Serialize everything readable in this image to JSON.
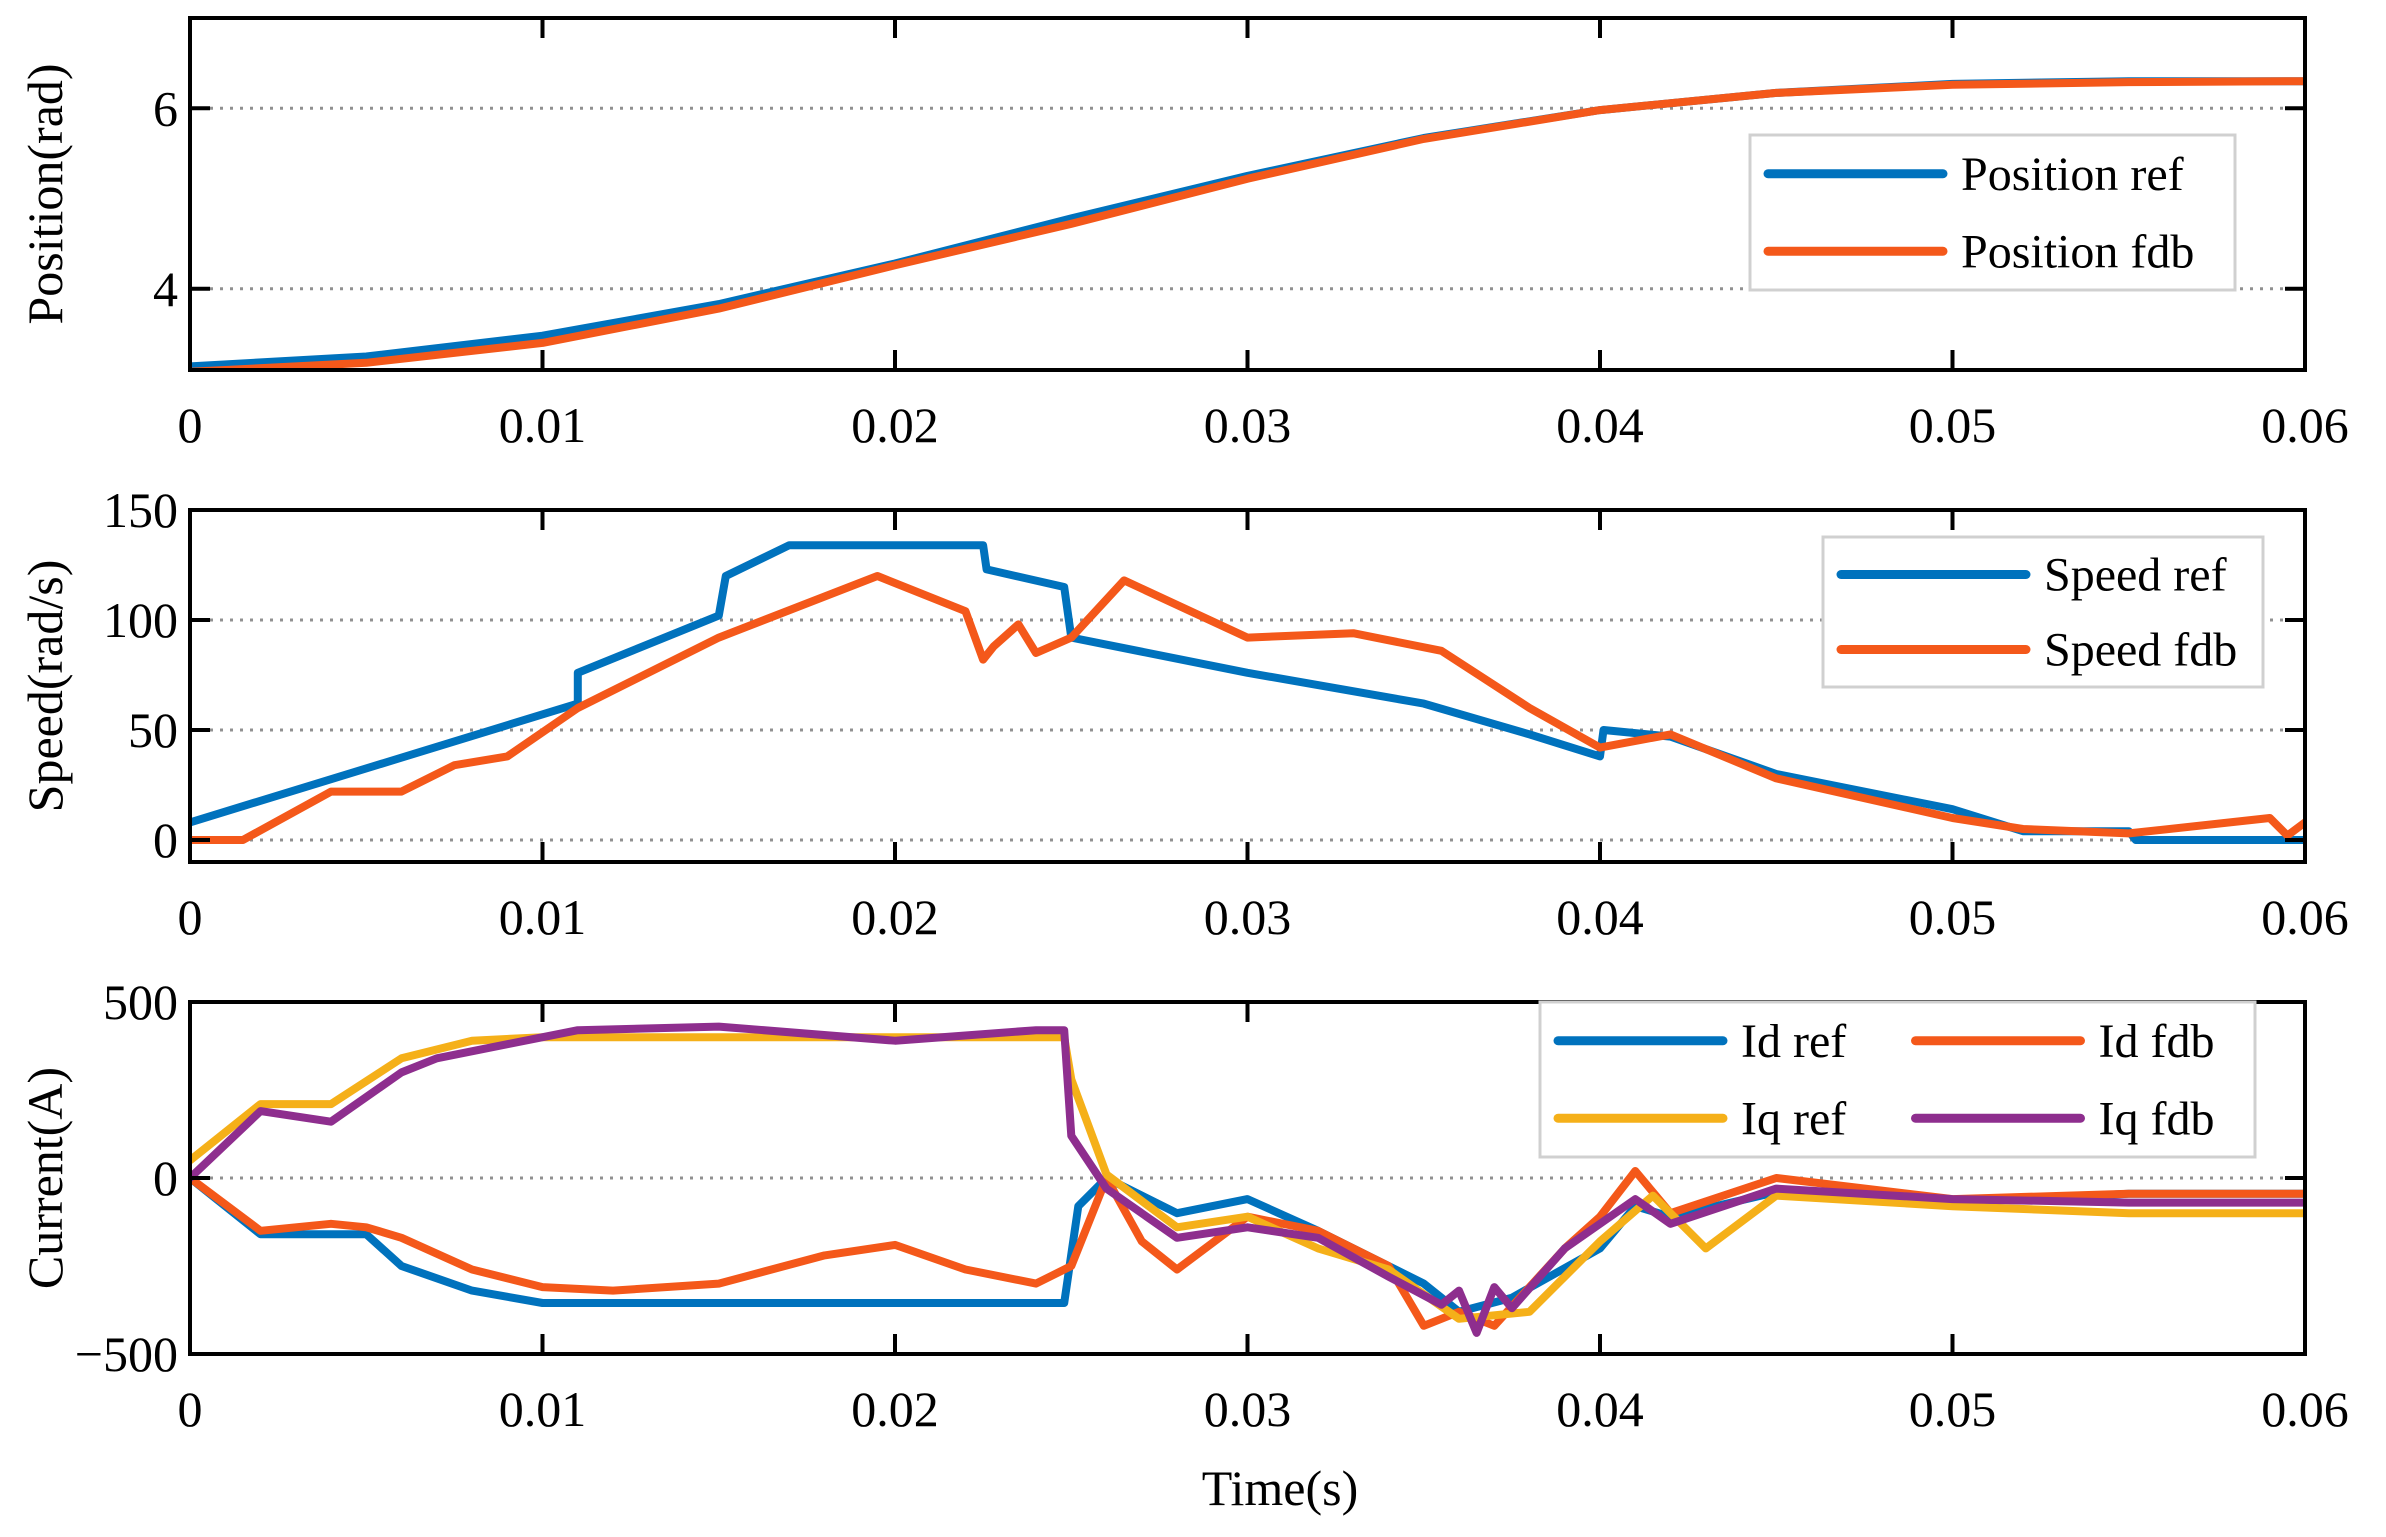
{
  "figure": {
    "xlabel": "Time(s)",
    "x_tick_labels": [
      "0",
      "0.01",
      "0.02",
      "0.03",
      "0.04",
      "0.05",
      "0.06"
    ]
  },
  "colors": {
    "blue": "#0072BD",
    "orange": "#F4581A",
    "yellow": "#F5B019",
    "purple": "#8E2E8E",
    "grid": "#909090"
  },
  "chart_data": [
    {
      "type": "line",
      "title": "",
      "xlabel": "",
      "ylabel": "Position(rad)",
      "xlim": [
        0,
        0.06
      ],
      "ylim": [
        3.1,
        7.0
      ],
      "x_ticks": [
        0,
        0.01,
        0.02,
        0.03,
        0.04,
        0.05,
        0.06
      ],
      "y_ticks": [
        4,
        6
      ],
      "y_tick_labels": [
        "4",
        "6"
      ],
      "grid": "y-dotted",
      "legend": "right",
      "legend_cols": 1,
      "series": [
        {
          "name": "Position ref",
          "color": "blue",
          "x": [
            0,
            0.005,
            0.01,
            0.015,
            0.02,
            0.025,
            0.03,
            0.035,
            0.04,
            0.045,
            0.05,
            0.055,
            0.06
          ],
          "y": [
            3.14,
            3.25,
            3.48,
            3.83,
            4.28,
            4.78,
            5.25,
            5.67,
            5.98,
            6.17,
            6.27,
            6.3,
            6.3
          ]
        },
        {
          "name": "Position fdb",
          "color": "orange",
          "x": [
            0,
            0.005,
            0.01,
            0.015,
            0.02,
            0.025,
            0.03,
            0.035,
            0.04,
            0.045,
            0.05,
            0.055,
            0.06
          ],
          "y": [
            3.08,
            3.18,
            3.4,
            3.78,
            4.26,
            4.72,
            5.22,
            5.66,
            5.98,
            6.17,
            6.26,
            6.29,
            6.3
          ]
        }
      ]
    },
    {
      "type": "line",
      "title": "",
      "xlabel": "",
      "ylabel": "Speed(rad/s)",
      "xlim": [
        0,
        0.06
      ],
      "ylim": [
        -10,
        150
      ],
      "x_ticks": [
        0,
        0.01,
        0.02,
        0.03,
        0.04,
        0.05,
        0.06
      ],
      "y_ticks": [
        0,
        50,
        100,
        150
      ],
      "y_tick_labels": [
        "0",
        "50",
        "100",
        "150"
      ],
      "grid": "y-dotted",
      "legend": "top-right",
      "legend_cols": 1,
      "series": [
        {
          "name": "Speed ref",
          "color": "blue",
          "x": [
            0,
            0.011,
            0.011,
            0.015,
            0.0152,
            0.017,
            0.0225,
            0.0226,
            0.0248,
            0.025,
            0.03,
            0.035,
            0.038,
            0.04,
            0.0401,
            0.042,
            0.045,
            0.05,
            0.052,
            0.055,
            0.0552,
            0.06
          ],
          "y": [
            8,
            62,
            76,
            102,
            120,
            134,
            134,
            123,
            115,
            92,
            76,
            62,
            48,
            38,
            50,
            47,
            30,
            14,
            4,
            4,
            0,
            0
          ]
        },
        {
          "name": "Speed fdb",
          "color": "orange",
          "x": [
            0,
            0.0015,
            0.004,
            0.006,
            0.0075,
            0.009,
            0.011,
            0.015,
            0.0195,
            0.022,
            0.0225,
            0.0228,
            0.0235,
            0.024,
            0.025,
            0.0265,
            0.03,
            0.033,
            0.0355,
            0.038,
            0.04,
            0.042,
            0.045,
            0.05,
            0.052,
            0.055,
            0.059,
            0.0595,
            0.06
          ],
          "y": [
            0,
            0,
            22,
            22,
            34,
            38,
            60,
            92,
            120,
            104,
            82,
            88,
            98,
            85,
            92,
            118,
            92,
            94,
            86,
            60,
            42,
            48,
            28,
            10,
            5,
            3,
            10,
            2,
            8
          ]
        }
      ]
    },
    {
      "type": "line",
      "title": "",
      "xlabel": "Time(s)",
      "ylabel": "Current(A)",
      "xlim": [
        0,
        0.06
      ],
      "ylim": [
        -500,
        500
      ],
      "x_ticks": [
        0,
        0.01,
        0.02,
        0.03,
        0.04,
        0.05,
        0.06
      ],
      "y_ticks": [
        -500,
        0,
        500
      ],
      "y_tick_labels": [
        "−500",
        "0",
        "500"
      ],
      "grid": "y-dotted",
      "legend": "top-right",
      "legend_cols": 2,
      "series": [
        {
          "name": "Id ref",
          "color": "blue",
          "x": [
            0,
            0.002,
            0.005,
            0.006,
            0.008,
            0.01,
            0.012,
            0.02,
            0.0248,
            0.0252,
            0.026,
            0.028,
            0.03,
            0.032,
            0.035,
            0.036,
            0.0375,
            0.04,
            0.041,
            0.042,
            0.045,
            0.05,
            0.055,
            0.06
          ],
          "y": [
            0,
            -160,
            -160,
            -250,
            -320,
            -355,
            -355,
            -355,
            -355,
            -80,
            0,
            -100,
            -60,
            -150,
            -300,
            -380,
            -340,
            -200,
            -80,
            -110,
            -40,
            -70,
            -45,
            -45
          ]
        },
        {
          "name": "Id fdb",
          "color": "orange",
          "x": [
            0,
            0.002,
            0.004,
            0.005,
            0.006,
            0.008,
            0.01,
            0.012,
            0.015,
            0.018,
            0.02,
            0.022,
            0.024,
            0.025,
            0.026,
            0.027,
            0.028,
            0.03,
            0.032,
            0.034,
            0.035,
            0.036,
            0.037,
            0.039,
            0.04,
            0.041,
            0.042,
            0.045,
            0.05,
            0.055,
            0.06
          ],
          "y": [
            0,
            -150,
            -130,
            -140,
            -170,
            -260,
            -310,
            -320,
            -300,
            -220,
            -190,
            -260,
            -300,
            -250,
            0,
            -180,
            -260,
            -110,
            -150,
            -250,
            -420,
            -380,
            -420,
            -200,
            -110,
            20,
            -100,
            0,
            -60,
            -45,
            -45
          ]
        },
        {
          "name": "Iq ref",
          "color": "yellow",
          "x": [
            0,
            0.002,
            0.004,
            0.006,
            0.008,
            0.01,
            0.015,
            0.02,
            0.0248,
            0.025,
            0.026,
            0.028,
            0.03,
            0.032,
            0.034,
            0.036,
            0.038,
            0.04,
            0.0415,
            0.043,
            0.045,
            0.05,
            0.055,
            0.06
          ],
          "y": [
            50,
            210,
            210,
            340,
            390,
            400,
            400,
            400,
            400,
            280,
            10,
            -140,
            -110,
            -200,
            -260,
            -400,
            -380,
            -180,
            -50,
            -200,
            -50,
            -80,
            -100,
            -100
          ]
        },
        {
          "name": "Iq fdb",
          "color": "purple",
          "x": [
            0,
            0.002,
            0.004,
            0.006,
            0.007,
            0.009,
            0.011,
            0.015,
            0.02,
            0.024,
            0.0248,
            0.025,
            0.026,
            0.028,
            0.03,
            0.032,
            0.034,
            0.0355,
            0.036,
            0.0365,
            0.037,
            0.0375,
            0.039,
            0.041,
            0.042,
            0.045,
            0.05,
            0.055,
            0.06
          ],
          "y": [
            0,
            190,
            160,
            300,
            340,
            380,
            420,
            430,
            390,
            420,
            420,
            120,
            -30,
            -170,
            -140,
            -170,
            -280,
            -360,
            -320,
            -440,
            -310,
            -370,
            -200,
            -60,
            -130,
            -30,
            -60,
            -70,
            -70
          ]
        }
      ]
    }
  ]
}
